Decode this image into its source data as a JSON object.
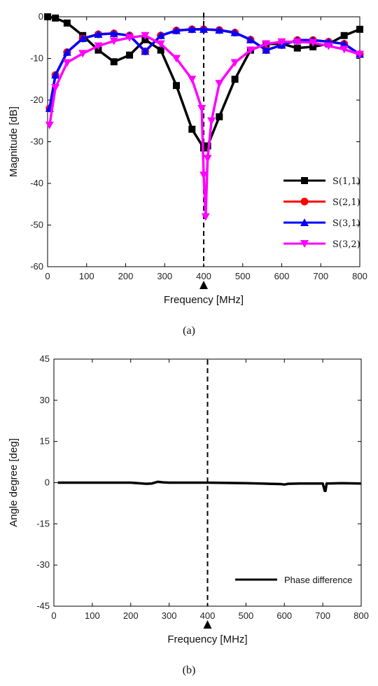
{
  "chart_data": [
    {
      "type": "line",
      "caption": "(a)",
      "xlabel": "Frequency [MHz]",
      "ylabel": "Magnitude [dB]",
      "xlim": [
        0,
        800
      ],
      "ylim": [
        -60,
        0
      ],
      "xticks": [
        0,
        100,
        200,
        300,
        400,
        500,
        600,
        700,
        800
      ],
      "yticks": [
        0,
        -10,
        -20,
        -30,
        -40,
        -50,
        -60
      ],
      "grid": false,
      "legend_position": "lower-right",
      "reference_line": {
        "x": 400,
        "style": "dashed",
        "marker": "triangle-up"
      },
      "series": [
        {
          "name": "S(1,1)",
          "color": "#000000",
          "marker": "square",
          "x": [
            0,
            20,
            50,
            90,
            130,
            170,
            210,
            250,
            290,
            330,
            370,
            400,
            410,
            440,
            480,
            520,
            560,
            600,
            640,
            680,
            720,
            760,
            800
          ],
          "values": [
            0,
            -0.3,
            -1.5,
            -4.5,
            -8,
            -10.8,
            -9.2,
            -5.5,
            -8,
            -16.5,
            -27,
            -31.5,
            -31,
            -24,
            -15,
            -8,
            -6.5,
            -6.5,
            -7.5,
            -7.2,
            -6.5,
            -4.5,
            -3
          ]
        },
        {
          "name": "S(2,1)",
          "color": "#ff0000",
          "marker": "circle",
          "x": [
            5,
            20,
            50,
            90,
            130,
            170,
            210,
            250,
            290,
            330,
            370,
            400,
            440,
            480,
            520,
            560,
            600,
            640,
            680,
            720,
            760,
            800
          ],
          "values": [
            -22,
            -14,
            -8.5,
            -5.2,
            -4.2,
            -4,
            -4.5,
            -8.3,
            -4.5,
            -3.3,
            -3,
            -3,
            -3.2,
            -3.8,
            -5.5,
            -8,
            -6.8,
            -5.6,
            -5.6,
            -6,
            -6.5,
            -9
          ]
        },
        {
          "name": "S(3,1)",
          "color": "#0000ff",
          "marker": "triangle-up",
          "x": [
            5,
            20,
            50,
            90,
            130,
            170,
            210,
            250,
            290,
            330,
            370,
            400,
            440,
            480,
            520,
            560,
            600,
            640,
            680,
            720,
            760,
            800
          ],
          "values": [
            -22,
            -14,
            -8.5,
            -5.2,
            -4.2,
            -4,
            -4.5,
            -8.3,
            -4.5,
            -3.3,
            -3,
            -3,
            -3.2,
            -3.8,
            -5.5,
            -8,
            -6.8,
            -5.6,
            -5.6,
            -6,
            -6.5,
            -9
          ]
        },
        {
          "name": "S(3,2)",
          "color": "#ff00ff",
          "marker": "triangle-down",
          "x": [
            5,
            20,
            50,
            90,
            130,
            170,
            210,
            250,
            290,
            330,
            370,
            395,
            400,
            405,
            410,
            420,
            440,
            480,
            520,
            560,
            600,
            640,
            680,
            720,
            760,
            800
          ],
          "values": [
            -26,
            -17,
            -11,
            -8.8,
            -7,
            -5.8,
            -5,
            -4.5,
            -6.5,
            -10,
            -15,
            -22,
            -38,
            -48,
            -34,
            -25,
            -16,
            -11,
            -8,
            -6.5,
            -6,
            -6,
            -6.2,
            -7,
            -7.8,
            -9
          ]
        }
      ]
    },
    {
      "type": "line",
      "caption": "(b)",
      "xlabel": "Frequency [MHz]",
      "ylabel": "Angle degree [deg]",
      "xlim": [
        0,
        800
      ],
      "ylim": [
        -45,
        45
      ],
      "xticks": [
        0,
        100,
        200,
        300,
        400,
        500,
        600,
        700,
        800
      ],
      "yticks": [
        45,
        30,
        15,
        0,
        -15,
        -30,
        -45
      ],
      "grid": false,
      "legend_position": "lower-right",
      "reference_line": {
        "x": 400,
        "style": "dashed",
        "marker": "triangle-up"
      },
      "series": [
        {
          "name": "Phase difference",
          "color": "#000000",
          "x": [
            10,
            100,
            200,
            240,
            255,
            270,
            285,
            300,
            400,
            500,
            560,
            590,
            600,
            610,
            640,
            700,
            705,
            707,
            710,
            750,
            800
          ],
          "values": [
            0,
            0,
            0,
            -0.4,
            -0.3,
            0.3,
            0.1,
            0,
            0,
            -0.2,
            -0.4,
            -0.5,
            -0.7,
            -0.4,
            -0.3,
            -0.3,
            -3,
            -3,
            -0.3,
            -0.2,
            -0.3
          ]
        }
      ]
    }
  ]
}
